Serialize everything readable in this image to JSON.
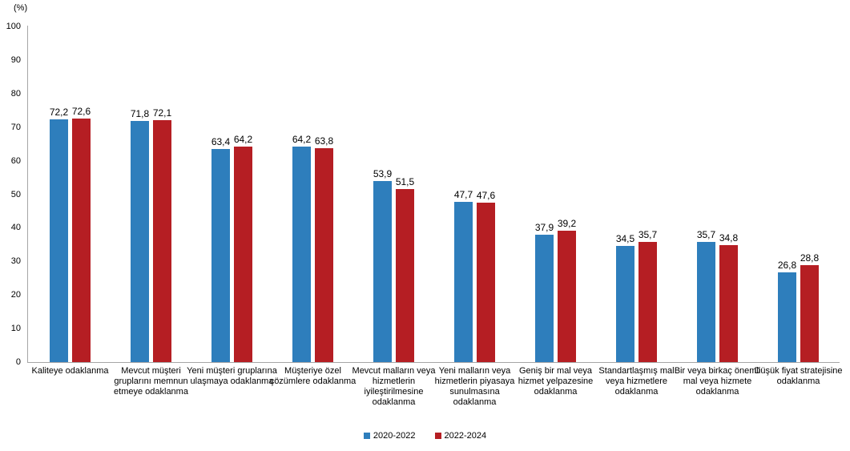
{
  "chart_data": {
    "type": "bar",
    "title": "",
    "unit_label": "(%)",
    "xlabel": "",
    "ylabel": "(%)",
    "ylim": [
      0,
      100
    ],
    "ytick_step": 10,
    "grid": false,
    "legend_position": "bottom-center",
    "axis_color": "#a6a6a6",
    "categories": [
      "Kaliteye odaklanma",
      "Mevcut müşteri gruplarını memnun etmeye odaklanma",
      "Yeni müşteri gruplarına ulaşmaya odaklanma",
      "Müşteriye özel çözümlere odaklanma",
      "Mevcut malların veya hizmetlerin iyileştirilmesine odaklanma",
      "Yeni malların veya hizmetlerin piyasaya sunulmasına odaklanma",
      "Geniş bir mal veya hizmet yelpazesine odaklanma",
      "Standartlaşmış mal veya hizmetlere odaklanma",
      "Bir veya birkaç önemli mal veya hizmete odaklanma",
      "Düşük fiyat stratejisine odaklanma"
    ],
    "series": [
      {
        "name": "2020-2022",
        "color": "#2e7ebc",
        "values": [
          72.2,
          71.8,
          63.4,
          64.2,
          53.9,
          47.7,
          37.9,
          34.5,
          35.7,
          26.8
        ],
        "labels": [
          "72,2",
          "71,8",
          "63,4",
          "64,2",
          "53,9",
          "47,7",
          "37,9",
          "34,5",
          "35,7",
          "26,8"
        ]
      },
      {
        "name": "2022-2024",
        "color": "#b51e23",
        "values": [
          72.6,
          72.1,
          64.2,
          63.8,
          51.5,
          47.6,
          39.2,
          35.7,
          34.8,
          28.8
        ],
        "labels": [
          "72,6",
          "72,1",
          "64,2",
          "63,8",
          "51,5",
          "47,6",
          "39,2",
          "35,7",
          "34,8",
          "28,8"
        ]
      }
    ]
  }
}
